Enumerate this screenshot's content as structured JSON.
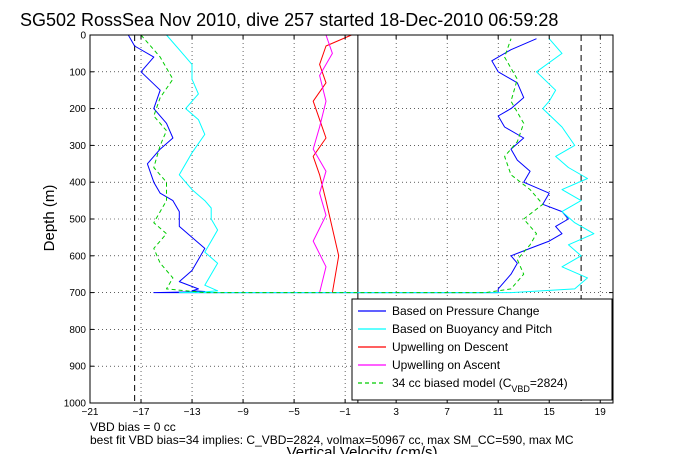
{
  "chart_data": {
    "type": "line",
    "title": "SG502 RossSea Nov 2010, dive 257 started 18-Dec-2010 06:59:28",
    "xlabel": "Vertical Velocity (cm/s)",
    "ylabel": "Depth (m)",
    "xlim": [
      -21,
      20
    ],
    "ylim": [
      1000,
      0
    ],
    "y_reversed": true,
    "xticks": [
      -21,
      -17,
      -13,
      -9,
      -5,
      -1,
      3,
      7,
      11,
      15,
      19
    ],
    "yticks": [
      0,
      100,
      200,
      300,
      400,
      500,
      600,
      700,
      800,
      900,
      1000
    ],
    "grid": true,
    "grid_style": "dotted",
    "legend_position": "bottom-right",
    "reference_lines": [
      {
        "orientation": "vertical",
        "x": -17.5,
        "style": "dashed",
        "color": "#000000"
      },
      {
        "orientation": "vertical",
        "x": 17.5,
        "style": "dashed",
        "color": "#000000"
      },
      {
        "orientation": "vertical",
        "x": 0,
        "style": "solid",
        "color": "#000000"
      }
    ],
    "series": [
      {
        "name": "Based on Pressure Change",
        "color": "#0000ff",
        "style": "solid",
        "x": [
          -18,
          -17.5,
          -16,
          -17,
          -15.5,
          -16,
          -15,
          -14.5,
          -15.5,
          -16.5,
          -16,
          -15.5,
          -14.5,
          -14,
          -14,
          -13,
          -12,
          -12.5,
          -13,
          -14,
          -12.5,
          -13,
          -12,
          -13,
          -16,
          -10,
          0,
          11,
          11,
          12,
          12.5,
          12,
          13.5,
          15,
          16,
          15.5,
          16.5,
          16,
          14.5,
          15,
          13,
          13.5,
          12.5,
          12,
          13,
          11.5,
          11,
          12,
          13,
          12.5,
          11,
          10.5,
          12,
          14
        ],
        "y": [
          0,
          30,
          60,
          100,
          150,
          200,
          240,
          280,
          310,
          350,
          400,
          430,
          450,
          480,
          520,
          550,
          580,
          610,
          640,
          670,
          690,
          695,
          697,
          698,
          700,
          700,
          700,
          700,
          690,
          650,
          620,
          600,
          580,
          560,
          540,
          520,
          500,
          480,
          460,
          430,
          400,
          370,
          340,
          310,
          280,
          250,
          220,
          200,
          170,
          130,
          100,
          70,
          40,
          10
        ]
      },
      {
        "name": "Based on Buoyancy and Pitch",
        "color": "#00ffff",
        "style": "solid",
        "x": [
          -15,
          -14,
          -13,
          -13,
          -12.5,
          -13.5,
          -12.5,
          -12,
          -13,
          -14,
          -13,
          -12,
          -11.5,
          -11.5,
          -11,
          -11.5,
          -12,
          -11,
          -11.5,
          -12,
          -11,
          -12,
          -14,
          -10,
          0,
          12,
          17,
          18,
          16,
          17.5,
          16.5,
          18.5,
          17,
          16,
          17.5,
          16,
          18,
          16.5,
          15.5,
          17,
          16,
          14.5,
          15,
          15.5,
          14,
          16,
          15
        ],
        "y": [
          0,
          40,
          80,
          120,
          160,
          200,
          230,
          270,
          320,
          380,
          420,
          450,
          470,
          500,
          530,
          560,
          590,
          620,
          650,
          680,
          695,
          698,
          700,
          700,
          700,
          700,
          690,
          660,
          630,
          600,
          570,
          540,
          510,
          480,
          450,
          420,
          390,
          360,
          330,
          300,
          250,
          200,
          180,
          150,
          100,
          50,
          10
        ]
      },
      {
        "name": "Upwelling on Descent",
        "color": "#ff0000",
        "style": "solid",
        "x": [
          -0.5,
          -2.5,
          -3,
          -2.5,
          -3.5,
          -3,
          -2.5,
          -3.5,
          -3,
          -2.5,
          -1.5,
          -2
        ],
        "y": [
          0,
          30,
          80,
          130,
          180,
          230,
          280,
          330,
          380,
          450,
          600,
          700
        ]
      },
      {
        "name": "Upwelling on Ascent",
        "color": "#ff00ff",
        "style": "solid",
        "x": [
          -3,
          -2.5,
          -3.5,
          -2.5,
          -3,
          -2.5,
          -3.5,
          -3,
          -2.5,
          -3,
          -2,
          -2.5
        ],
        "y": [
          700,
          630,
          560,
          490,
          430,
          370,
          310,
          250,
          180,
          110,
          50,
          0
        ]
      },
      {
        "name": "34 cc biased model (C",
        "name_subscript": "VBD",
        "name_suffix": "=2824)",
        "color": "#00cc00",
        "style": "dashed",
        "x": [
          -17,
          -15.5,
          -14.5,
          -15.5,
          -16,
          -15,
          -15.5,
          -16,
          -15,
          -15,
          -16,
          -15,
          -16,
          -15.5,
          -14.5,
          -15,
          -12,
          0,
          10,
          12,
          13,
          12.5,
          13.5,
          14,
          13,
          14.5,
          13.5,
          12,
          11.5,
          12.5,
          13,
          12,
          12.5,
          11.5,
          12
        ],
        "y": [
          0,
          60,
          120,
          170,
          220,
          260,
          300,
          360,
          400,
          450,
          510,
          540,
          580,
          620,
          660,
          690,
          700,
          700,
          700,
          690,
          650,
          610,
          570,
          540,
          500,
          460,
          420,
          380,
          330,
          290,
          240,
          180,
          120,
          60,
          10
        ]
      }
    ]
  },
  "notes": {
    "line1": "VBD bias = 0 cc",
    "line2": "best fit VBD bias=34 implies: C_VBD=2824, volmax=50967 cc, max SM_CC=590, max MC"
  }
}
